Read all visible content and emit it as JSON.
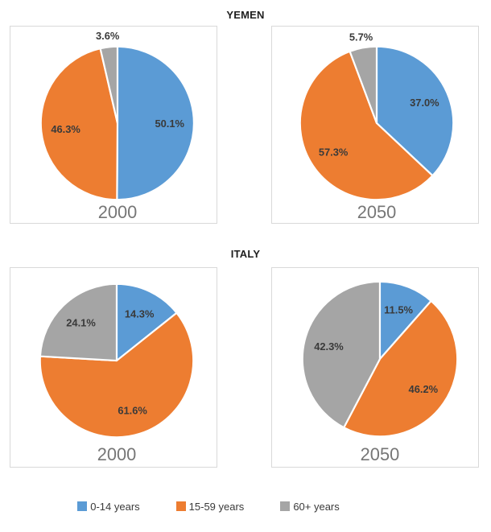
{
  "titles": {
    "yemen": "YEMEN",
    "italy": "ITALY"
  },
  "legend": {
    "position": "bottom",
    "items": [
      {
        "label": "0-14 years",
        "color": "#5B9BD5"
      },
      {
        "label": "15-59 years",
        "color": "#ED7D31"
      },
      {
        "label": "60+ years",
        "color": "#A5A5A5"
      }
    ]
  },
  "colors": {
    "series": [
      "#5B9BD5",
      "#ED7D31",
      "#A5A5A5"
    ],
    "slice_separator": "#FFFFFF",
    "data_label": "#3A3A3A",
    "year_label": "#767676",
    "panel_border": "#D9D9D9",
    "title_text": "#1F1F1F"
  },
  "chart_data": [
    {
      "type": "pie",
      "country": "YEMEN",
      "year": "2000",
      "categories": [
        "0-14 years",
        "15-59 years",
        "60+ years"
      ],
      "values": [
        50.1,
        46.3,
        3.6
      ],
      "labels": [
        "50.1%",
        "46.3%",
        "3.6%"
      ],
      "start_angle_deg": 0,
      "direction": "clockwise",
      "units": "percent"
    },
    {
      "type": "pie",
      "country": "YEMEN",
      "year": "2050",
      "categories": [
        "0-14 years",
        "15-59 years",
        "60+ years"
      ],
      "values": [
        37.0,
        57.3,
        5.7
      ],
      "labels": [
        "37.0%",
        "57.3%",
        "5.7%"
      ],
      "start_angle_deg": 0,
      "direction": "clockwise",
      "units": "percent"
    },
    {
      "type": "pie",
      "country": "ITALY",
      "year": "2000",
      "categories": [
        "0-14 years",
        "15-59 years",
        "60+ years"
      ],
      "values": [
        14.3,
        61.6,
        24.1
      ],
      "labels": [
        "14.3%",
        "61.6%",
        "24.1%"
      ],
      "start_angle_deg": 0,
      "direction": "clockwise",
      "units": "percent"
    },
    {
      "type": "pie",
      "country": "ITALY",
      "year": "2050",
      "categories": [
        "0-14 years",
        "15-59 years",
        "60+ years"
      ],
      "values": [
        11.5,
        46.2,
        42.3
      ],
      "labels": [
        "11.5%",
        "46.2%",
        "42.3%"
      ],
      "start_angle_deg": 0,
      "direction": "clockwise",
      "units": "percent"
    }
  ]
}
